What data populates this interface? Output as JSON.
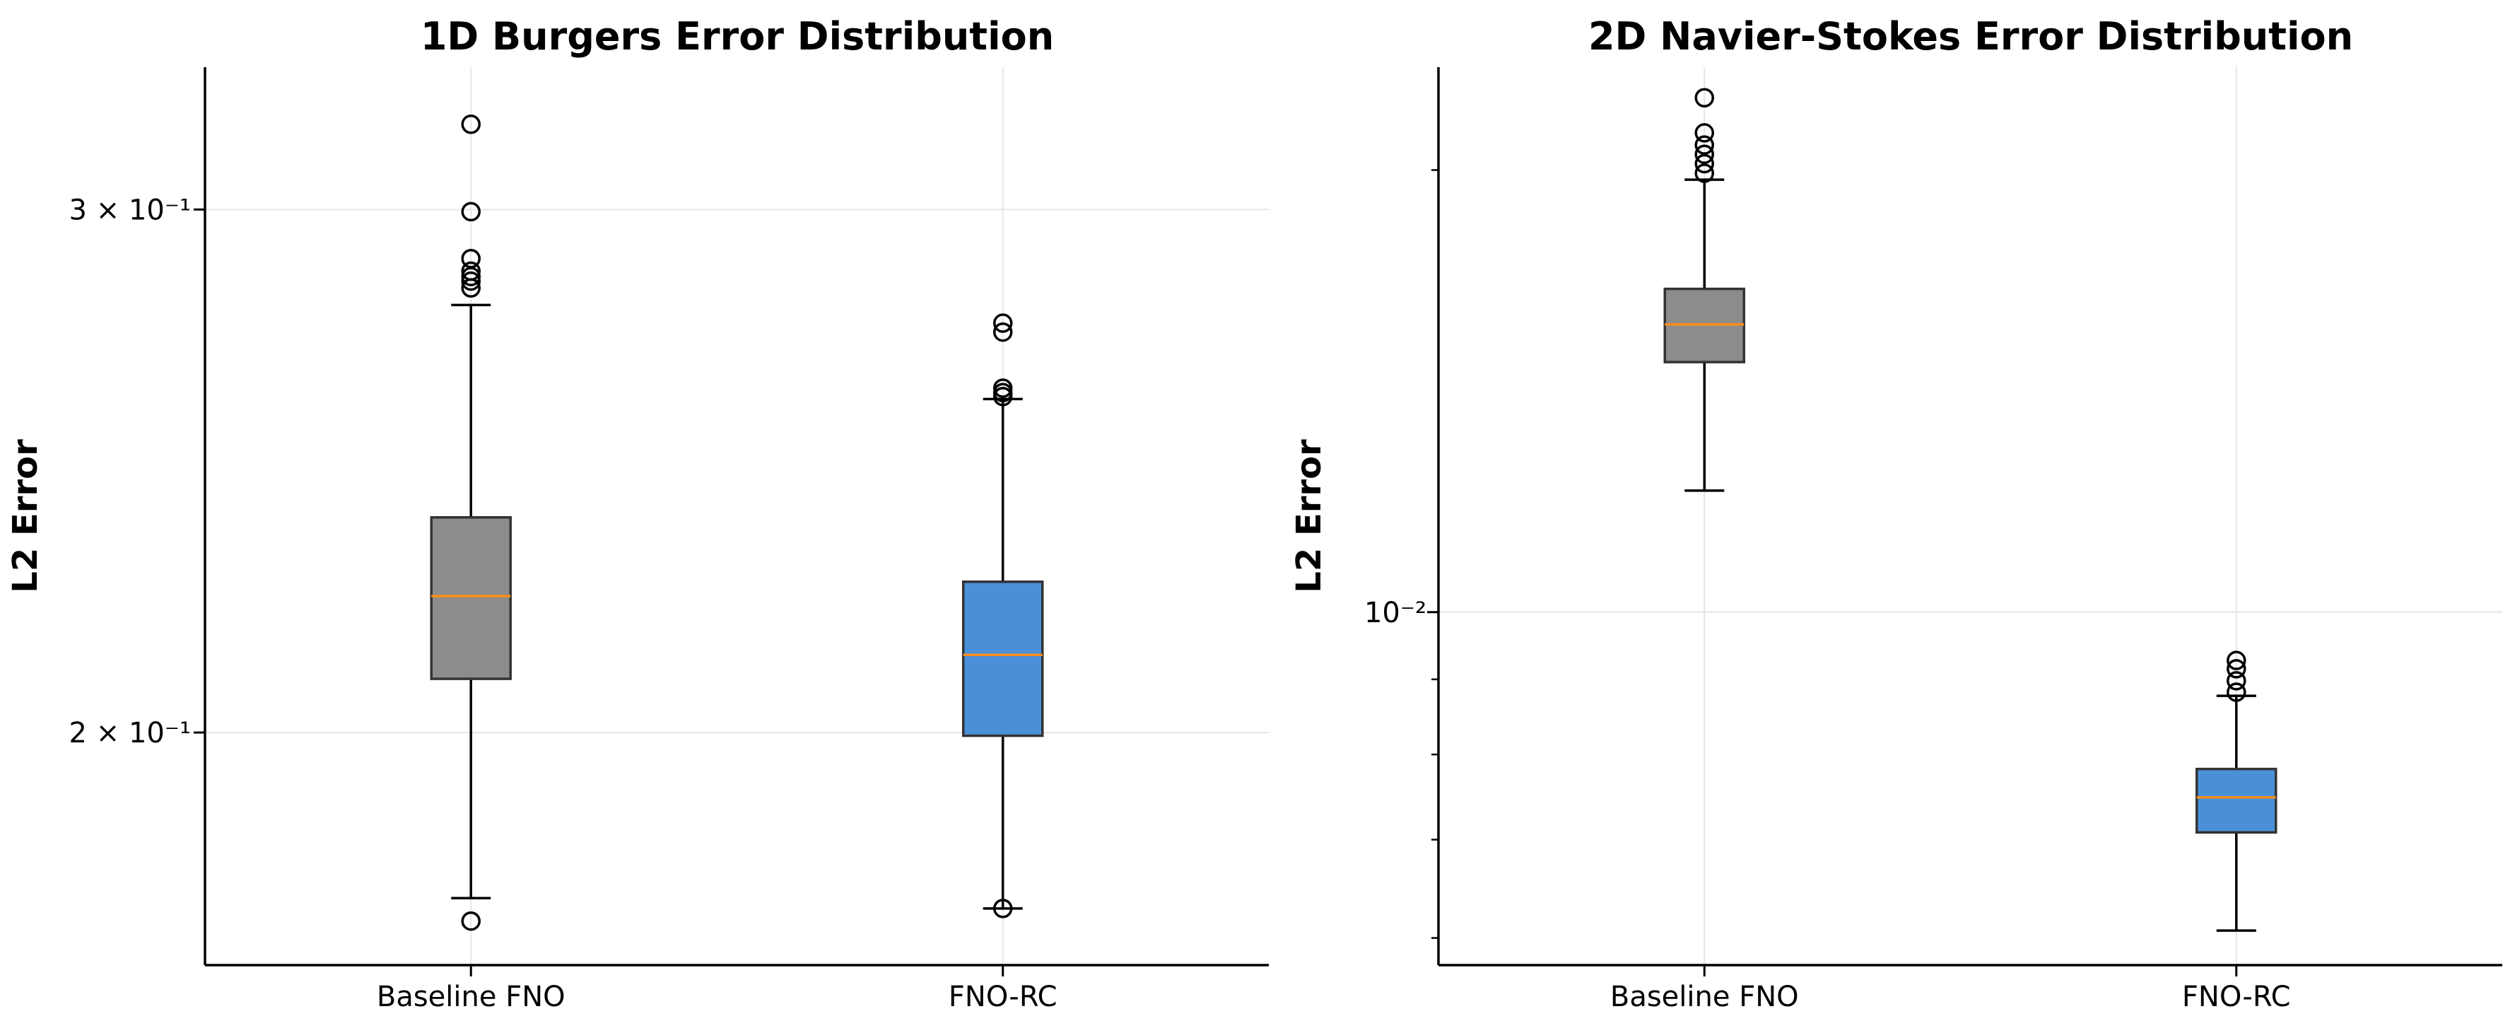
{
  "chart_data": [
    {
      "type": "box",
      "title": "1D Burgers Error Distribution",
      "xlabel": "",
      "ylabel": "L2 Error",
      "yscale": "log",
      "ylim": [
        0.167,
        0.335
      ],
      "grid": true,
      "categories": [
        "Baseline FNO",
        "FNO-RC"
      ],
      "y_ticks": [
        {
          "value": 0.2,
          "label": "2 × 10⁻¹"
        },
        {
          "value": 0.3,
          "label": "3 × 10⁻¹"
        }
      ],
      "boxes": [
        {
          "category": "Baseline FNO",
          "whisker_low": 0.1759,
          "q1": 0.2085,
          "median": 0.2223,
          "q3": 0.2363,
          "whisker_high": 0.2786,
          "outliers": [
            0.1728,
            0.2823,
            0.2838,
            0.2848,
            0.286,
            0.2888,
            0.2995,
            0.3205
          ],
          "color": "#8c8c8c"
        },
        {
          "category": "FNO-RC",
          "whisker_low": 0.1745,
          "q1": 0.1995,
          "median": 0.2124,
          "q3": 0.2248,
          "whisker_high": 0.259,
          "outliers": [
            0.1745,
            0.2595,
            0.2603,
            0.2612,
            0.2728,
            0.2747
          ],
          "color": "#4a90d9"
        }
      ],
      "median_color": "#ff8c1a"
    },
    {
      "type": "box",
      "title": "2D Navier-Stokes Error Distribution",
      "xlabel": "",
      "ylabel": "L2 Error",
      "yscale": "log",
      "ylim": [
        0.00575,
        0.0235
      ],
      "grid": true,
      "categories": [
        "Baseline FNO",
        "FNO-RC"
      ],
      "y_ticks": [
        {
          "value": 0.01,
          "label": "10⁻²"
        }
      ],
      "boxes": [
        {
          "category": "Baseline FNO",
          "whisker_low": 0.0121,
          "q1": 0.0148,
          "median": 0.0157,
          "q3": 0.0166,
          "whisker_high": 0.0197,
          "outliers": [
            0.0199,
            0.0202,
            0.0205,
            0.0208,
            0.0212,
            0.0224
          ],
          "color": "#8c8c8c"
        },
        {
          "category": "FNO-RC",
          "whisker_low": 0.00607,
          "q1": 0.00708,
          "median": 0.00748,
          "q3": 0.00782,
          "whisker_high": 0.00877,
          "outliers": [
            0.00882,
            0.00898,
            0.00915,
            0.00927
          ],
          "color": "#4a90d9"
        }
      ],
      "median_color": "#ff8c1a"
    }
  ]
}
